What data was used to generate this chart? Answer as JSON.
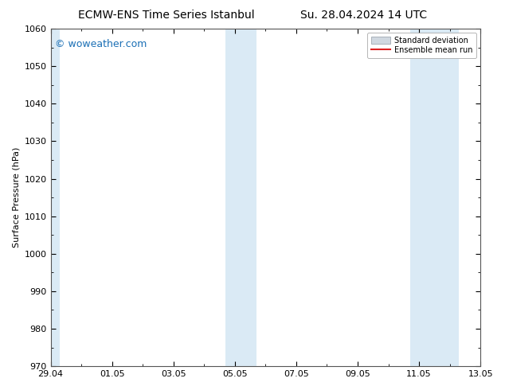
{
  "title_left": "ECMW-ENS Time Series Istanbul",
  "title_right": "Su. 28.04.2024 14 UTC",
  "ylabel": "Surface Pressure (hPa)",
  "ylim": [
    970,
    1060
  ],
  "yticks": [
    970,
    980,
    990,
    1000,
    1010,
    1020,
    1030,
    1040,
    1050,
    1060
  ],
  "xtick_labels": [
    "29.04",
    "01.05",
    "03.05",
    "05.05",
    "07.05",
    "09.05",
    "11.05",
    "13.05"
  ],
  "x_positions": [
    0,
    2,
    4,
    6,
    8,
    10,
    12,
    14
  ],
  "x_total_min": 0,
  "x_total_max": 14,
  "shaded_regions": [
    {
      "xmin": -0.3,
      "xmax": 0.3,
      "color": "#daeaf5"
    },
    {
      "xmin": 5.7,
      "xmax": 6.7,
      "color": "#daeaf5"
    },
    {
      "xmin": 11.7,
      "xmax": 13.3,
      "color": "#daeaf5"
    }
  ],
  "legend_sd_color": "#d0d8e0",
  "legend_sd_edge": "#a0a8b0",
  "legend_mean_color": "#dd2222",
  "watermark_text": "© woweather.com",
  "watermark_color": "#1a6fb5",
  "watermark_fontsize": 9,
  "title_fontsize": 10,
  "axis_fontsize": 8,
  "tick_fontsize": 8,
  "bg_color": "#ffffff",
  "plot_bg_color": "#ffffff",
  "spine_color": "#555555"
}
